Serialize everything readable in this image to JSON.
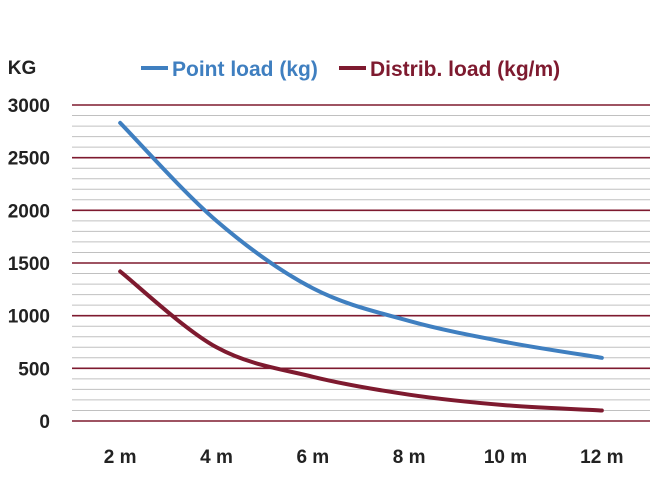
{
  "chart_data": {
    "type": "line",
    "title": "",
    "xlabel": "",
    "ylabel": "KG",
    "categories": [
      "2 m",
      "4 m",
      "6 m",
      "8 m",
      "10 m",
      "12 m"
    ],
    "x": [
      2,
      4,
      6,
      8,
      10,
      12
    ],
    "series": [
      {
        "name": "Point load (kg)",
        "color": "#3f7fc0",
        "values": [
          2830,
          1900,
          1260,
          950,
          750,
          600
        ]
      },
      {
        "name": "Distrib. load (kg/m)",
        "color": "#7e1a2f",
        "values": [
          1420,
          700,
          420,
          250,
          150,
          100
        ]
      }
    ],
    "ylim": [
      0,
      3000
    ],
    "yticks": [
      0,
      500,
      1000,
      1500,
      2000,
      2500,
      3000
    ],
    "ytick_labels": [
      "0",
      "500",
      "1000",
      "1500",
      "2000",
      "2500",
      "3000"
    ],
    "xlim": [
      1,
      13
    ],
    "grid": true,
    "grid_major_color": "#7e1a2f",
    "grid_minor_color": "#c0c0c0",
    "minor_step": 100,
    "legend": "top"
  }
}
